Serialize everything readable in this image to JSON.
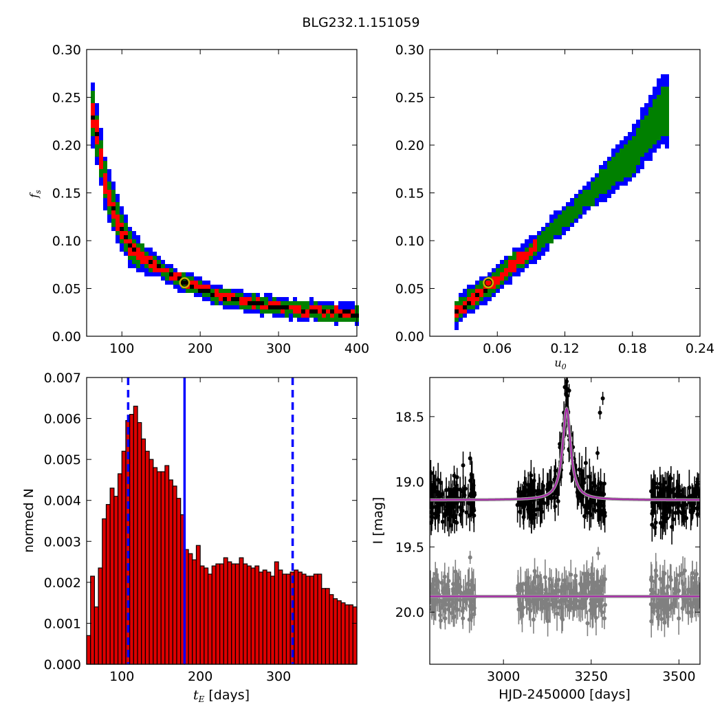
{
  "figure": {
    "title": "BLG232.1.151059"
  },
  "chart_data": [
    {
      "type": "heatmap",
      "panel": "top-left",
      "xlabel": "",
      "ylabel": "f_s",
      "xlim": [
        55,
        400
      ],
      "ylim": [
        0.0,
        0.3
      ],
      "xticks": [
        100,
        200,
        300,
        400
      ],
      "yticks": [
        0.0,
        0.05,
        0.1,
        0.15,
        0.2,
        0.25,
        0.3
      ],
      "ytick_labels": [
        "0.00",
        "0.05",
        "0.10",
        "0.15",
        "0.20",
        "0.25",
        "0.30"
      ],
      "levels_colors": {
        "outer": "#0000ff",
        "mid": "#008000",
        "inner": "#ff0000",
        "core": "#000000"
      },
      "ridge": [
        {
          "x": 62,
          "y": 0.235
        },
        {
          "x": 70,
          "y": 0.205
        },
        {
          "x": 80,
          "y": 0.155
        },
        {
          "x": 95,
          "y": 0.12
        },
        {
          "x": 110,
          "y": 0.095
        },
        {
          "x": 130,
          "y": 0.08
        },
        {
          "x": 150,
          "y": 0.07
        },
        {
          "x": 180,
          "y": 0.057
        },
        {
          "x": 220,
          "y": 0.043
        },
        {
          "x": 270,
          "y": 0.034
        },
        {
          "x": 320,
          "y": 0.028
        },
        {
          "x": 400,
          "y": 0.023
        }
      ],
      "best_fit": {
        "x": 180,
        "y": 0.056
      }
    },
    {
      "type": "heatmap",
      "panel": "top-right",
      "xlabel": "u_0",
      "ylabel": "",
      "xlim": [
        0.0,
        0.24
      ],
      "ylim": [
        0.0,
        0.3
      ],
      "xticks": [
        0.06,
        0.12,
        0.18,
        0.24
      ],
      "xtick_labels": [
        "0.06",
        "0.12",
        "0.18",
        "0.24"
      ],
      "yticks": [
        0.0,
        0.05,
        0.1,
        0.15,
        0.2,
        0.25,
        0.3
      ],
      "ytick_labels": [
        "0.00",
        "0.05",
        "0.10",
        "0.15",
        "0.20",
        "0.25",
        "0.30"
      ],
      "levels_colors": {
        "outer": "#0000ff",
        "mid": "#008000",
        "inner": "#ff0000",
        "core": "#000000"
      },
      "ridge": [
        {
          "x": 0.022,
          "y": 0.023
        },
        {
          "x": 0.06,
          "y": 0.06
        },
        {
          "x": 0.1,
          "y": 0.1
        },
        {
          "x": 0.14,
          "y": 0.145
        },
        {
          "x": 0.18,
          "y": 0.19
        },
        {
          "x": 0.205,
          "y": 0.235
        }
      ],
      "best_fit": {
        "x": 0.052,
        "y": 0.056
      }
    },
    {
      "type": "bar",
      "panel": "bottom-left",
      "xlabel": "t_E [days]",
      "ylabel": "normed N",
      "xlim": [
        55,
        400
      ],
      "ylim": [
        0.0,
        0.007
      ],
      "xticks": [
        100,
        200,
        300
      ],
      "yticks": [
        0.0,
        0.001,
        0.002,
        0.003,
        0.004,
        0.005,
        0.006,
        0.007
      ],
      "ytick_labels": [
        "0.000",
        "0.001",
        "0.002",
        "0.003",
        "0.004",
        "0.005",
        "0.006",
        "0.007"
      ],
      "bin_width": 5,
      "bin_start": 55,
      "values": [
        0.0007,
        0.00215,
        0.0014,
        0.00235,
        0.00355,
        0.0039,
        0.0043,
        0.0041,
        0.00465,
        0.0052,
        0.00595,
        0.0061,
        0.0063,
        0.0059,
        0.0055,
        0.0052,
        0.005,
        0.0048,
        0.0047,
        0.0047,
        0.00485,
        0.0045,
        0.00435,
        0.00405,
        0.00365,
        0.0028,
        0.0027,
        0.00255,
        0.0029,
        0.0024,
        0.00235,
        0.0022,
        0.0024,
        0.00245,
        0.00245,
        0.0026,
        0.0025,
        0.00245,
        0.00245,
        0.0026,
        0.00245,
        0.0024,
        0.00235,
        0.0024,
        0.00225,
        0.0023,
        0.00225,
        0.00215,
        0.0025,
        0.0023,
        0.0022,
        0.0022,
        0.00225,
        0.0023,
        0.00225,
        0.0022,
        0.00215,
        0.00215,
        0.0022,
        0.0022,
        0.00185,
        0.00185,
        0.0017,
        0.0016,
        0.00155,
        0.0015,
        0.00145,
        0.00145,
        0.0014
      ],
      "bar_color": "#dd0000",
      "vlines": [
        {
          "x": 108,
          "style": "dashed",
          "color": "#0000ff"
        },
        {
          "x": 180,
          "style": "solid",
          "color": "#0000ff"
        },
        {
          "x": 318,
          "style": "dashed",
          "color": "#0000ff"
        }
      ]
    },
    {
      "type": "scatter",
      "panel": "bottom-right",
      "xlabel": "HJD-2450000 [days]",
      "ylabel": "I [mag]",
      "xlim": [
        2790,
        3560
      ],
      "ylim": [
        20.4,
        18.2
      ],
      "xticks": [
        3000,
        3250,
        3500
      ],
      "yticks": [
        18.5,
        19.0,
        19.5,
        20.0
      ],
      "ytick_labels": [
        "18.5",
        "19.0",
        "19.5",
        "20.0"
      ],
      "series": [
        {
          "color": "#000000",
          "baseline": 19.14,
          "model_color": "#aa22aa",
          "peak": {
            "t0": 3180,
            "amp": 0.7,
            "width": 14
          },
          "segments": [
            [
              2790,
              2920
            ],
            [
              3040,
              3290
            ],
            [
              3420,
              3560
            ]
          ],
          "outliers": [
            {
              "x": 3180,
              "y": 18.23
            },
            {
              "x": 3187,
              "y": 18.3
            },
            {
              "x": 3275,
              "y": 18.47
            },
            {
              "x": 3283,
              "y": 18.36
            },
            {
              "x": 3268,
              "y": 18.78
            },
            {
              "x": 2905,
              "y": 18.82
            }
          ]
        },
        {
          "color": "#808080",
          "baseline": 19.88,
          "model_color": "#aa22aa",
          "segments": [
            [
              2790,
              2920
            ],
            [
              3040,
              3290
            ],
            [
              3420,
              3560
            ]
          ],
          "outliers": [
            {
              "x": 2905,
              "y": 19.58
            },
            {
              "x": 3270,
              "y": 19.55
            }
          ]
        }
      ]
    }
  ]
}
